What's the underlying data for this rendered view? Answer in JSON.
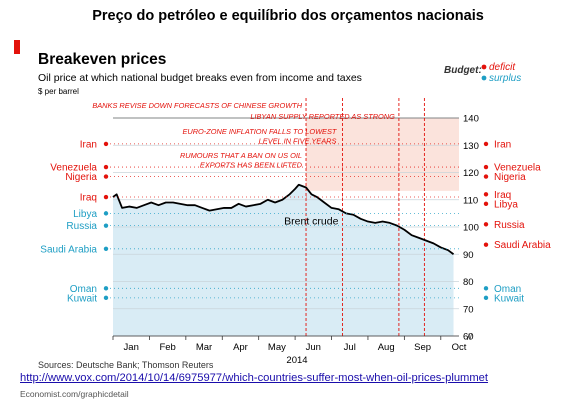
{
  "page_title": "Preço do petróleo e equilíbrio dos orçamentos nacionais",
  "footer_url": "http://www.vox.com/2014/10/14/6975977/which-countries-suffer-most-when-oil-prices-plummet",
  "chart_data": {
    "type": "line",
    "title": "Breakeven prices",
    "subtitle": "Oil price at which national budget breaks even from income and taxes",
    "ylabel": "$ per barrel",
    "xlabel": "2014",
    "ylim": [
      60,
      140
    ],
    "y_ticks": [
      60,
      70,
      80,
      90,
      100,
      110,
      120,
      130,
      140
    ],
    "x_ticks": [
      "Jan",
      "Feb",
      "Mar",
      "Apr",
      "May",
      "Jun",
      "Jul",
      "Aug",
      "Sep",
      "Oct"
    ],
    "grid": true,
    "legend": {
      "title": "Budget:",
      "position": "top-right",
      "items": [
        {
          "label": "deficit",
          "color": "#e3120b"
        },
        {
          "label": "surplus",
          "color": "#1e9ec4"
        }
      ]
    },
    "series": [
      {
        "name": "Brent crude",
        "color": "#000000",
        "x": [
          0.0,
          0.1,
          0.25,
          0.45,
          0.65,
          0.85,
          1.05,
          1.25,
          1.45,
          1.65,
          1.85,
          2.05,
          2.25,
          2.45,
          2.65,
          2.85,
          3.05,
          3.25,
          3.45,
          3.65,
          3.85,
          4.05,
          4.25,
          4.45,
          4.65,
          4.85,
          5.0,
          5.1,
          5.2,
          5.3,
          5.45,
          5.6,
          5.8,
          6.0,
          6.2,
          6.4,
          6.6,
          6.8,
          7.0,
          7.2,
          7.4,
          7.6,
          7.8,
          8.0,
          8.2,
          8.4,
          8.6,
          8.8,
          9.0,
          9.2,
          9.35
        ],
        "values": [
          111,
          112,
          107,
          107.5,
          107,
          108,
          109,
          108,
          109,
          109,
          108.5,
          108,
          108,
          107,
          106,
          106.5,
          107,
          107,
          108.5,
          107.5,
          108,
          108.5,
          110,
          109,
          110,
          112,
          114,
          115.5,
          115,
          114.5,
          112,
          111,
          109,
          107,
          106.5,
          105,
          104.5,
          103,
          102,
          101.5,
          102,
          101.5,
          100.5,
          99,
          97,
          96,
          95,
          94,
          92.5,
          91.5,
          90
        ]
      }
    ],
    "series_label": "Brent crude",
    "countries": [
      {
        "name": "Iran",
        "breakeven": 130.5,
        "status": "deficit",
        "label_left": true
      },
      {
        "name": "Venezuela",
        "breakeven": 121,
        "status": "deficit"
      },
      {
        "name": "Nigeria",
        "breakeven": 119,
        "status": "deficit"
      },
      {
        "name": "Iraq",
        "breakeven": 111,
        "status": "deficit"
      },
      {
        "name": "Libya",
        "breakeven": 108.5,
        "status": "surplus"
      },
      {
        "name": "Russia",
        "breakeven": 101,
        "status": "deficit"
      },
      {
        "name": "Saudi Arabia",
        "breakeven": 93,
        "status": "deficit"
      },
      {
        "name": "Oman",
        "breakeven": 78,
        "status": "surplus"
      },
      {
        "name": "Kuwait",
        "breakeven": 75,
        "status": "surplus"
      }
    ],
    "left_labels": [
      {
        "name": "Iran",
        "value": 130.5,
        "status": "deficit"
      },
      {
        "name": "Venezuela",
        "value": 122,
        "status": "deficit"
      },
      {
        "name": "Nigeria",
        "value": 118.5,
        "status": "deficit"
      },
      {
        "name": "Iraq",
        "value": 111,
        "status": "deficit"
      },
      {
        "name": "Libya",
        "value": 105,
        "status": "surplus"
      },
      {
        "name": "Russia",
        "value": 100.5,
        "status": "surplus"
      },
      {
        "name": "Saudi Arabia",
        "value": 92,
        "status": "surplus"
      },
      {
        "name": "Oman",
        "value": 77.5,
        "status": "surplus"
      },
      {
        "name": "Kuwait",
        "value": 74,
        "status": "surplus"
      }
    ],
    "right_labels": [
      {
        "name": "Iran",
        "value": 130.5,
        "status": "deficit"
      },
      {
        "name": "Venezuela",
        "value": 122,
        "status": "deficit"
      },
      {
        "name": "Nigeria",
        "value": 118.5,
        "status": "deficit"
      },
      {
        "name": "Iraq",
        "value": 112,
        "status": "deficit"
      },
      {
        "name": "Libya",
        "value": 108.5,
        "status": "deficit"
      },
      {
        "name": "Russia",
        "value": 101,
        "status": "deficit"
      },
      {
        "name": "Saudi Arabia",
        "value": 93.5,
        "status": "deficit"
      },
      {
        "name": "Oman",
        "value": 77.5,
        "status": "surplus"
      },
      {
        "name": "Kuwait",
        "value": 74,
        "status": "surplus"
      }
    ],
    "events": [
      {
        "x": 5.3,
        "lines": [
          "BANKS REVISE DOWN FORECASTS OF CHINESE GROWTH"
        ],
        "y": 142
      },
      {
        "x": 8.85,
        "lines": [
          "LIBYAN SUPPLY REPORTED AS STRONG"
        ],
        "y": 138
      },
      {
        "x": 8.2,
        "lines": [
          "EURO-ZONE INFLATION FALLS TO LOWEST",
          "LEVEL IN FIVE YEARS"
        ],
        "y": 131
      },
      {
        "x": 6.35,
        "lines": [
          "RUMOURS THAT A BAN ON US OIL",
          "EXPORTS HAS BEEN LIFTED"
        ],
        "y": 125
      }
    ],
    "event_lines_x": [
      5.3,
      6.3,
      7.85,
      8.55
    ],
    "deficit_color": "#e3120b",
    "surplus_color": "#1e9ec4",
    "sources": "Sources: Deutsche Bank; Thomson Reuters",
    "credit": "Economist.com/graphicdetail"
  }
}
